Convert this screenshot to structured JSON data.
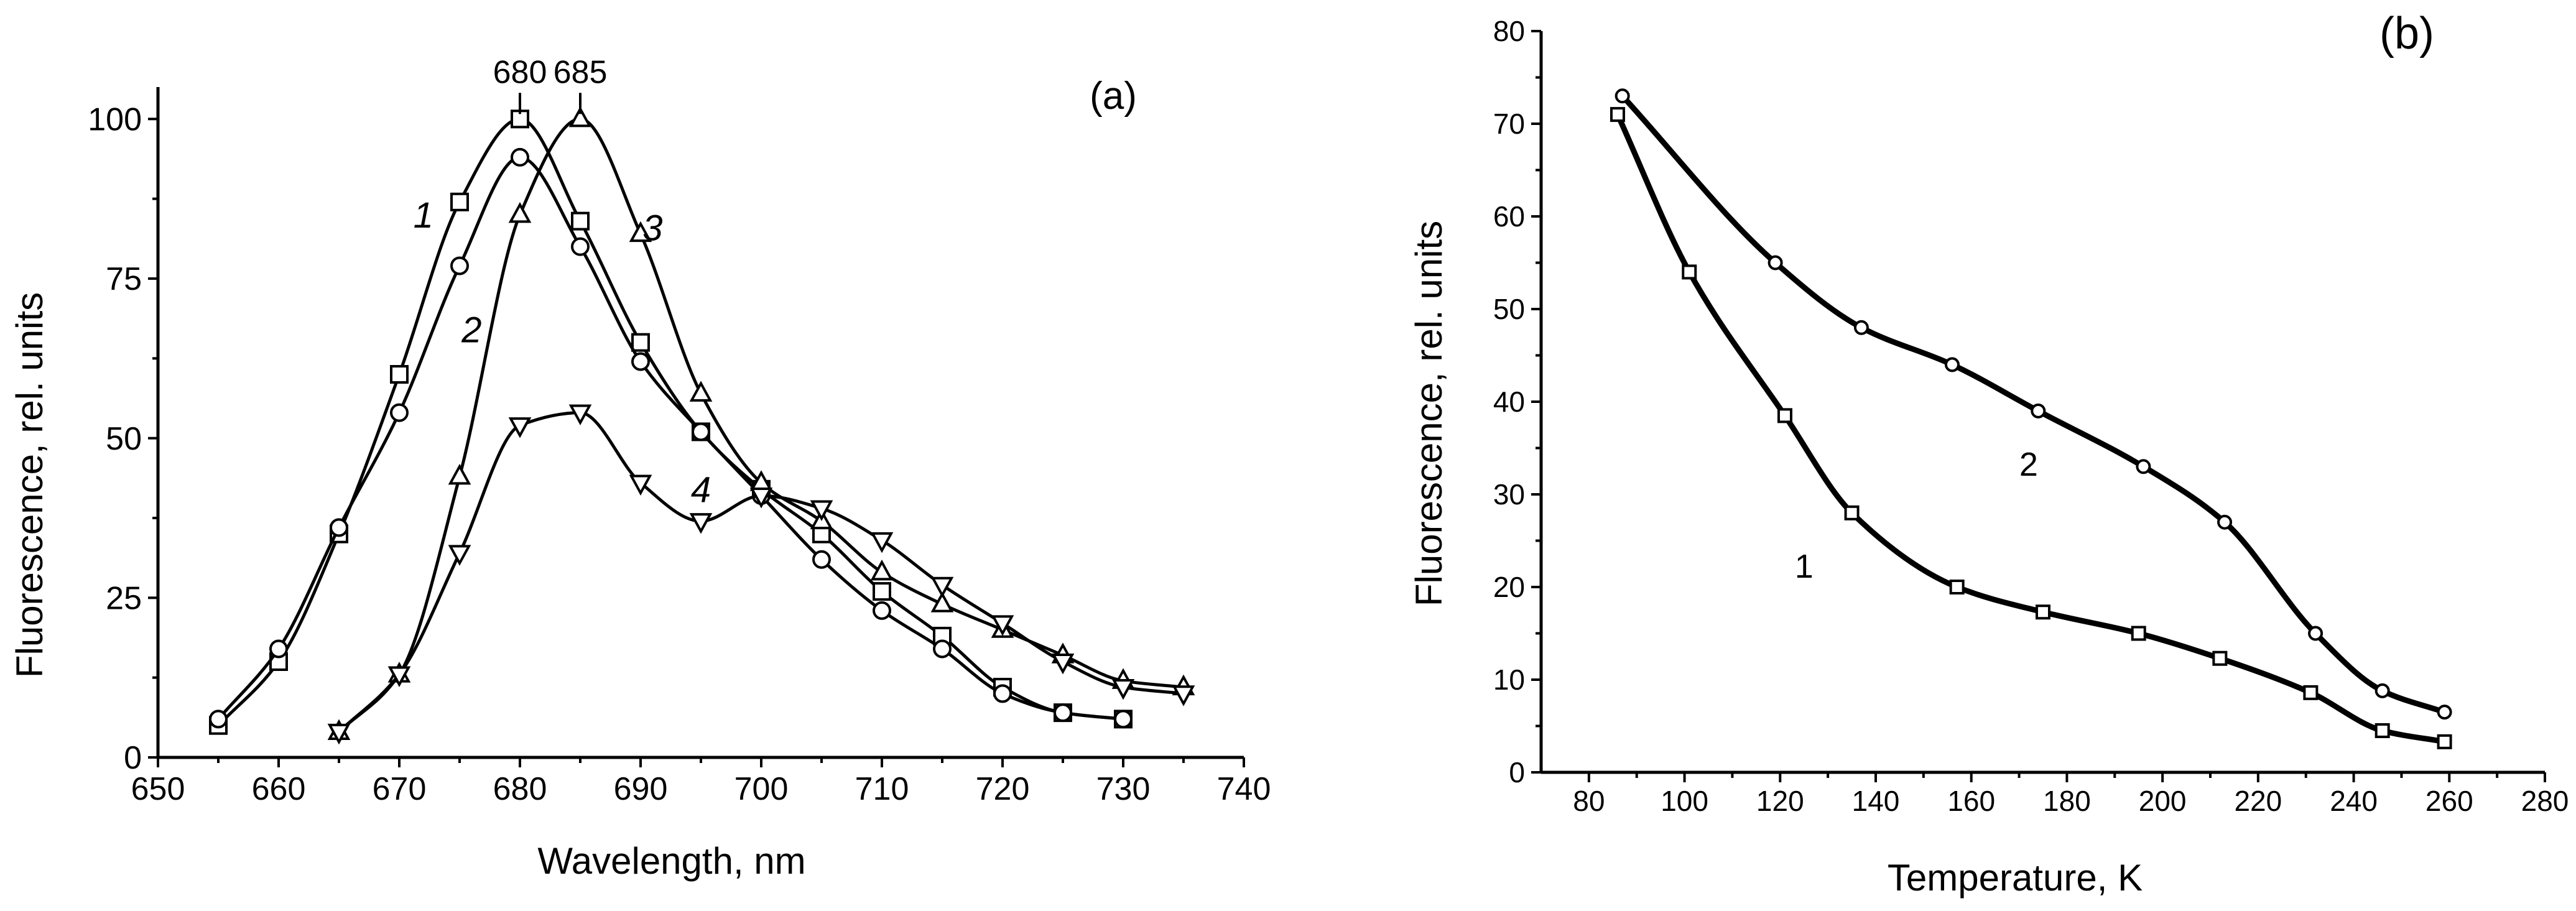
{
  "chart_data": [
    {
      "panel": "(a)",
      "type": "line",
      "xlabel": "Wavelength, nm",
      "ylabel": "Fluorescence, rel. units",
      "xlim": [
        650,
        740
      ],
      "ylim": [
        0,
        105
      ],
      "xticks": [
        650,
        660,
        670,
        680,
        690,
        700,
        710,
        720,
        730,
        740
      ],
      "yticks": [
        0,
        25,
        50,
        75,
        100
      ],
      "grid": false,
      "peak_labels": [
        {
          "text": "680",
          "x": 680,
          "y": 100
        },
        {
          "text": "685",
          "x": 685,
          "y": 100
        }
      ],
      "series": [
        {
          "name": "1",
          "marker": "square",
          "x": [
            655,
            660,
            665,
            670,
            675,
            680,
            685,
            690,
            695,
            700,
            705,
            710,
            715,
            720,
            725,
            730
          ],
          "y": [
            5,
            15,
            35,
            60,
            87,
            100,
            84,
            65,
            51,
            42,
            35,
            26,
            19,
            11,
            7,
            6
          ],
          "label_at": [
            672,
            83
          ]
        },
        {
          "name": "2",
          "marker": "circle",
          "x": [
            655,
            660,
            665,
            670,
            675,
            680,
            685,
            690,
            695,
            700,
            705,
            710,
            715,
            720,
            725,
            730
          ],
          "y": [
            6,
            17,
            36,
            54,
            77,
            94,
            80,
            62,
            51,
            41,
            31,
            23,
            17,
            10,
            7,
            6
          ],
          "label_at": [
            676,
            65
          ]
        },
        {
          "name": "3",
          "marker": "triangle-up",
          "x": [
            665,
            670,
            675,
            680,
            685,
            690,
            695,
            700,
            705,
            710,
            715,
            720,
            725,
            730,
            735
          ],
          "y": [
            4,
            13,
            44,
            85,
            100,
            82,
            57,
            43,
            37,
            29,
            24,
            20,
            16,
            12,
            11
          ],
          "label_at": [
            691,
            81
          ]
        },
        {
          "name": "4",
          "marker": "triangle-down",
          "x": [
            665,
            670,
            675,
            680,
            685,
            690,
            695,
            700,
            705,
            710,
            715,
            720,
            725,
            730,
            735
          ],
          "y": [
            4,
            13,
            32,
            52,
            54,
            43,
            37,
            41,
            39,
            34,
            27,
            21,
            15,
            11,
            10
          ],
          "label_at": [
            695,
            40
          ]
        }
      ]
    },
    {
      "panel": "(b)",
      "type": "line",
      "xlabel": "Temperature, K",
      "ylabel": "Fluorescence, rel. units",
      "xlim": [
        70,
        280
      ],
      "ylim": [
        0,
        80
      ],
      "xticks": [
        80,
        100,
        120,
        140,
        160,
        180,
        200,
        220,
        240,
        260,
        280
      ],
      "yticks": [
        0,
        10,
        20,
        30,
        40,
        50,
        60,
        70,
        80
      ],
      "grid": false,
      "series": [
        {
          "name": "1",
          "marker": "square",
          "x": [
            86,
            101,
            121,
            135,
            157,
            175,
            195,
            212,
            231,
            246,
            259
          ],
          "y": [
            71,
            54,
            38.5,
            28,
            20,
            17.3,
            15,
            12.3,
            8.6,
            4.5,
            3.3
          ],
          "label_at": [
            125,
            21
          ]
        },
        {
          "name": "2",
          "marker": "circle",
          "x": [
            87,
            119,
            137,
            156,
            174,
            196,
            213,
            232,
            246,
            259
          ],
          "y": [
            73,
            55,
            48,
            44,
            39,
            33,
            27,
            15,
            8.8,
            6.5
          ],
          "label_at": [
            172,
            32
          ]
        }
      ]
    }
  ]
}
